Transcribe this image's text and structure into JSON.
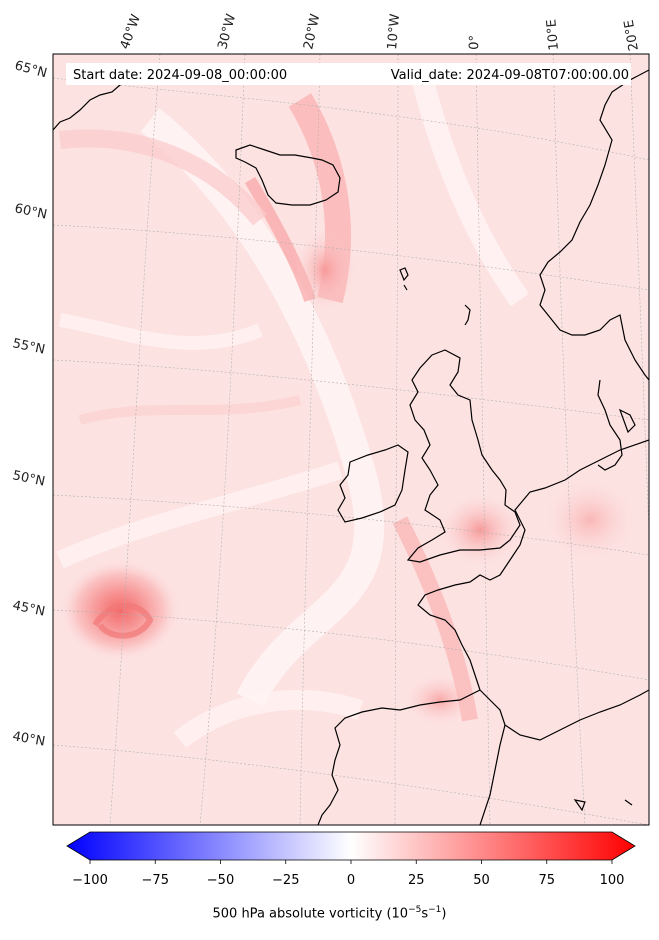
{
  "header": {
    "start_date": "Start date: 2024-09-08_00:00:00",
    "valid_date": "Valid_date: 2024-09-08T07:00:00.00"
  },
  "longitude_labels": [
    "40°W",
    "30°W",
    "20°W",
    "10°W",
    "0°",
    "10°E",
    "20°E"
  ],
  "latitude_labels": [
    "65°N",
    "60°N",
    "55°N",
    "50°N",
    "45°N",
    "40°N"
  ],
  "colorbar": {
    "ticks": [
      "−100",
      "−75",
      "−50",
      "−25",
      "0",
      "25",
      "50",
      "75",
      "100"
    ],
    "label_prefix": "500 hPa absolute vorticity (10",
    "label_exp1": "−5",
    "label_mid": "s",
    "label_exp2": "−1",
    "label_suffix": ")",
    "min": -100,
    "max": 100,
    "colormap": "bwr",
    "min_color": "#0000ff",
    "mid_color": "#ffffff",
    "max_color": "#ff0000"
  },
  "map": {
    "field": "500 hPa absolute vorticity",
    "background_color": "#fde4e4",
    "coastline_color": "#000000",
    "gridline_color": "#b0b0b0",
    "grid": "dashed"
  }
}
